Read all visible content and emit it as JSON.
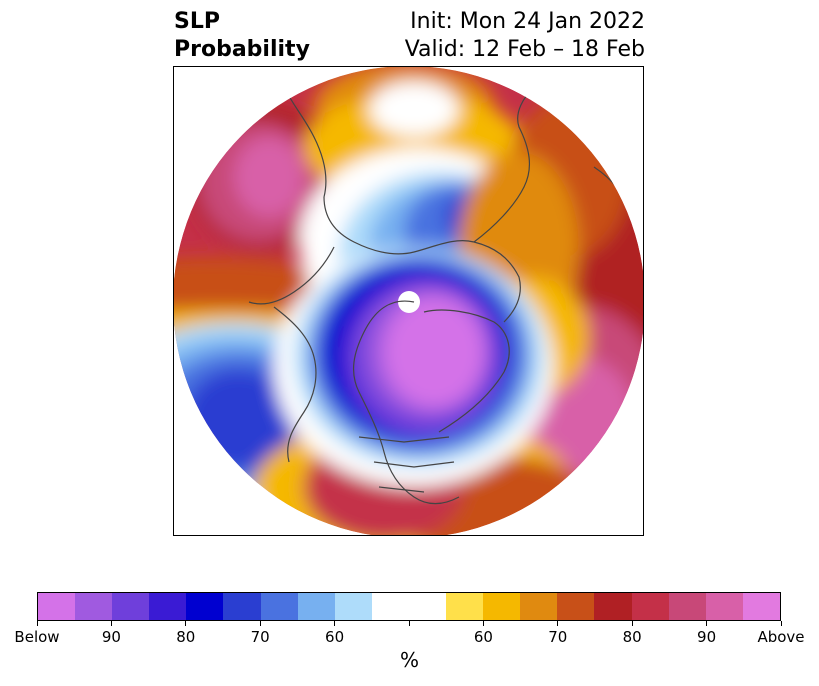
{
  "title": {
    "left_line1": "SLP",
    "left_line2": "Probability",
    "right_line1": "Init: Mon 24 Jan 2022",
    "right_line2": "Valid: 12 Feb – 18 Feb"
  },
  "map": {
    "projection": "north-polar-stereographic",
    "coastline_color": "#444444",
    "features": [
      {
        "name": "north-pacific-above-max",
        "color": "#e27ae0"
      },
      {
        "name": "north-atlantic-above-max",
        "color": "#e27ae0"
      },
      {
        "name": "arctic-below-max",
        "color": "#d472e8"
      },
      {
        "name": "russia-below",
        "color": "#3a5fd9"
      },
      {
        "name": "east-asia-below",
        "color": "#2a3ed1"
      },
      {
        "name": "arctic-cap-above",
        "color": "#ffffff"
      },
      {
        "name": "pole-missing",
        "color": "#ffffff"
      }
    ]
  },
  "colorbar": {
    "colors": [
      "#d472e8",
      "#a05ae0",
      "#6f3fdb",
      "#3a1bd4",
      "#0000d0",
      "#2a3ed1",
      "#4a72e0",
      "#77b0f0",
      "#aedcfa",
      "#ffffff",
      "#ffffff",
      "#ffe04a",
      "#f5b800",
      "#e08a10",
      "#c85018",
      "#b02024",
      "#c43048",
      "#c84878",
      "#d860a8",
      "#e27ae0"
    ],
    "tick_labels": [
      "Below",
      "90",
      "80",
      "70",
      "60",
      "",
      "60",
      "70",
      "80",
      "90",
      "Above"
    ],
    "units": "%"
  }
}
